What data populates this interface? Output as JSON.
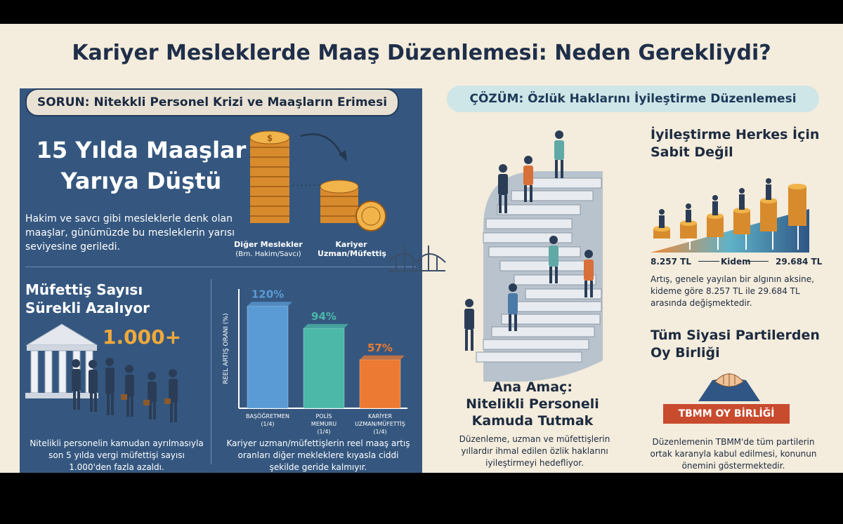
{
  "title": "Kariyer Mesleklerde Maaş Düzenlemesi: Neden Gerekliydi?",
  "problem": {
    "pill": "SORUN: Nitekkli Personel Krizi ve Maaşların Erimesi",
    "heading_line1": "15 Yılda Maaşlar",
    "heading_line2": "Yarıya Düştü",
    "body": "Hakim ve savcı gibi mesleklerle denk olan maaşlar, günümüzde bu mesleklerin yarısı seviyesine geriledi.",
    "coin_left_title": "Diğer Meslekler",
    "coin_left_sub": "(Brn. Hakim/Savcı)",
    "coin_right_title": "Kariyer Uzman/Müfettiş",
    "inspector_heading_line1": "Müfettiş Sayısı",
    "inspector_heading_line2": "Sürekli Azalıyor",
    "big_number": "1.000+",
    "inspector_body": "Nitelikli personelin kamudan ayrılmasıyla son 5 yılda vergi müfettişi sayısı 1.000'den fazla azaldı.",
    "chart_body": "Kariyer uzman/müfettişlerin reel maaş artış oranları diğer mekleklere kıyasla ciddi şekilde geride kalmıyır."
  },
  "solution": {
    "pill": "ÇÖZÜM: Özlük Haklarını İyileştirme Düzenlemesi",
    "goal_line1": "Ana Amaç:",
    "goal_line2": "Nitelikli Personeli",
    "goal_line3": "Kamuda Tutmak",
    "goal_body": "Düzenleme, uzman ve müfettişlerin yıllardır ihmal edilen özlik haklarını iyileştirmeyi hedefliyor.",
    "improve_heading_line1": "İyileştirme Herkes İçin",
    "improve_heading_line2": "Sabit Değil",
    "min_value": "8.257 TL",
    "seniority_label": "Kidem",
    "max_value": "29.684 TL",
    "improve_body": "Artış, genele yayılan bir algının aksine, kideme göre 8.257 TL ile 29.684 TL arasında değişmektedir.",
    "parties_heading_line1": "Tüm Siyasi Partilerden",
    "parties_heading_line2": "Oy Birliği",
    "banner": "TBMM OY BİRLİĞİ",
    "parties_body": "Düzenlemenin TBMM'de tüm partilerin ortak karanyla kabul edilmesi, konunun önemini göstermektedir."
  },
  "colors": {
    "navy_panel": "#35577f",
    "cream_background": "#f4ecdc",
    "bar_blue": "#5b9bd5",
    "bar_teal": "#4bb8a8",
    "bar_orange": "#ec7a32",
    "banner_red": "#c84b2e"
  },
  "chart_data": {
    "type": "bar",
    "ylabel": "REEL ARTIŞ ORANI (%)",
    "categories": [
      "BAŞÖĞRETMEN (1/4)",
      "POLİS MEMURU (1/4)",
      "KARİYER UZMAN/MÜFETTİŞ (1/4)"
    ],
    "category_lines": [
      [
        "BAŞÖĞRETMEN",
        "(1/4)"
      ],
      [
        "POLİS",
        "MEMURU",
        "(1/4)"
      ],
      [
        "KARİYER",
        "UZMAN/MÜFETTİŞ",
        "(1/4)"
      ]
    ],
    "values": [
      120,
      94,
      57
    ],
    "value_labels": [
      "120%",
      "94%",
      "57%"
    ],
    "colors": [
      "#5b9bd5",
      "#4bb8a8",
      "#ec7a32"
    ],
    "ylim": [
      0,
      140
    ]
  }
}
